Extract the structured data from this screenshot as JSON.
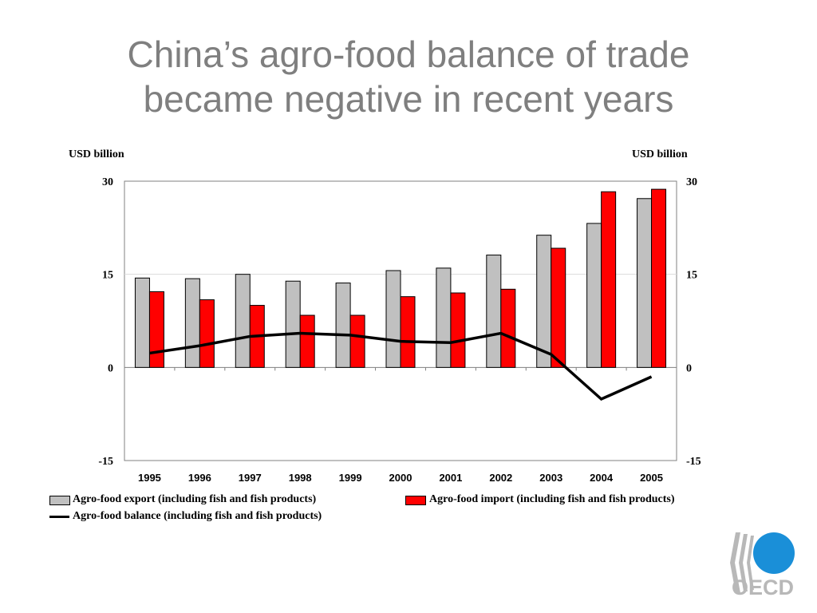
{
  "slide": {
    "title_line1": "China’s agro-food balance of trade",
    "title_line2": "became negative in recent years"
  },
  "logo": {
    "text": "OECD"
  },
  "colors": {
    "title": "#7f7f7f",
    "export": "#c0c0c0",
    "import": "#ff0000",
    "balance": "#000000"
  },
  "chart_data": {
    "type": "bar",
    "y_label_left": "USD billion",
    "y_label_right": "USD billion",
    "ylim": [
      -15,
      30
    ],
    "yticks": [
      -15,
      0,
      15,
      30
    ],
    "grid": true,
    "legend_position": "bottom",
    "categories": [
      "1995",
      "1996",
      "1997",
      "1998",
      "1999",
      "2000",
      "2001",
      "2002",
      "2003",
      "2004",
      "2005"
    ],
    "series": [
      {
        "name": "Agro-food export (including fish and fish products)",
        "kind": "bar",
        "color": "#c0c0c0",
        "values": [
          14.4,
          14.3,
          15.0,
          13.9,
          13.6,
          15.6,
          16.0,
          18.1,
          21.3,
          23.2,
          27.2
        ]
      },
      {
        "name": "Agro-food import (including fish and fish products)",
        "kind": "bar",
        "color": "#ff0000",
        "values": [
          12.2,
          10.9,
          10.0,
          8.4,
          8.4,
          11.4,
          12.0,
          12.6,
          19.2,
          28.3,
          28.7
        ]
      },
      {
        "name": "Agro-food balance (including fish and fish products)",
        "kind": "line",
        "color": "#000000",
        "values": [
          2.3,
          3.5,
          5.0,
          5.5,
          5.2,
          4.2,
          4.0,
          5.5,
          2.1,
          -5.1,
          -1.5
        ]
      }
    ]
  }
}
